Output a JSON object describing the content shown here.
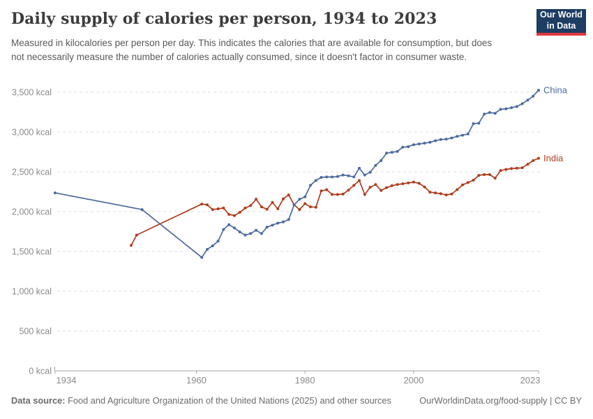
{
  "header": {
    "title": "Daily supply of calories per person, 1934 to 2023",
    "subtitle": "Measured in kilocalories per person per day. This indicates the calories that are available for consumption, but does not necessarily measure the number of calories actually consumed, since it doesn't factor in consumer waste.",
    "logo_line1": "Our World",
    "logo_line2": "in Data"
  },
  "footer": {
    "source_label": "Data source:",
    "source_text": " Food and Agriculture Organization of the United Nations (2025) and other sources",
    "right_text": "OurWorldinData.org/food-supply | CC BY"
  },
  "colors": {
    "china": "#4C6A9F",
    "india": "#AF3C1C",
    "gridline": "#DCDCDC",
    "axis": "#A3A3A3",
    "tick_text": "#8A8A8A",
    "logo_bg": "#1D3D63",
    "logo_stripe": "#E0373C"
  },
  "chart_data": {
    "type": "line",
    "title": "Daily supply of calories per person, 1934 to 2023",
    "xlabel": "",
    "ylabel": "",
    "unit": "kcal",
    "grid": "dashed-horizontal",
    "legend_position": "line-end-labels",
    "x_axis": {
      "range": [
        1934,
        2023
      ],
      "ticks": [
        1934,
        1960,
        1980,
        2000,
        2023
      ]
    },
    "y_axis": {
      "range": [
        0,
        3500
      ],
      "ticks": [
        0,
        500,
        1000,
        1500,
        2000,
        2500,
        3000,
        3500
      ],
      "tick_suffix": " kcal"
    },
    "series": [
      {
        "name": "China",
        "color": "#4C6A9F",
        "points": [
          [
            1934,
            2235
          ],
          [
            1950,
            2025
          ],
          [
            1961,
            1425
          ],
          [
            1962,
            1525
          ],
          [
            1963,
            1570
          ],
          [
            1964,
            1630
          ],
          [
            1965,
            1775
          ],
          [
            1966,
            1835
          ],
          [
            1967,
            1795
          ],
          [
            1968,
            1745
          ],
          [
            1969,
            1705
          ],
          [
            1970,
            1725
          ],
          [
            1971,
            1765
          ],
          [
            1972,
            1725
          ],
          [
            1973,
            1805
          ],
          [
            1974,
            1830
          ],
          [
            1975,
            1855
          ],
          [
            1976,
            1870
          ],
          [
            1977,
            1900
          ],
          [
            1978,
            2085
          ],
          [
            1979,
            2155
          ],
          [
            1980,
            2185
          ],
          [
            1981,
            2330
          ],
          [
            1982,
            2390
          ],
          [
            1983,
            2430
          ],
          [
            1984,
            2435
          ],
          [
            1985,
            2435
          ],
          [
            1986,
            2440
          ],
          [
            1987,
            2460
          ],
          [
            1988,
            2450
          ],
          [
            1989,
            2435
          ],
          [
            1990,
            2545
          ],
          [
            1991,
            2460
          ],
          [
            1992,
            2495
          ],
          [
            1993,
            2580
          ],
          [
            1994,
            2640
          ],
          [
            1995,
            2735
          ],
          [
            1996,
            2745
          ],
          [
            1997,
            2755
          ],
          [
            1998,
            2810
          ],
          [
            1999,
            2815
          ],
          [
            2000,
            2840
          ],
          [
            2001,
            2850
          ],
          [
            2002,
            2860
          ],
          [
            2003,
            2870
          ],
          [
            2004,
            2890
          ],
          [
            2005,
            2905
          ],
          [
            2006,
            2910
          ],
          [
            2007,
            2925
          ],
          [
            2008,
            2945
          ],
          [
            2009,
            2960
          ],
          [
            2010,
            2975
          ],
          [
            2011,
            3105
          ],
          [
            2012,
            3110
          ],
          [
            2013,
            3225
          ],
          [
            2014,
            3245
          ],
          [
            2015,
            3235
          ],
          [
            2016,
            3285
          ],
          [
            2017,
            3290
          ],
          [
            2018,
            3305
          ],
          [
            2019,
            3320
          ],
          [
            2020,
            3355
          ],
          [
            2021,
            3400
          ],
          [
            2022,
            3450
          ],
          [
            2023,
            3525
          ]
        ]
      },
      {
        "name": "India",
        "color": "#AF3C1C",
        "points": [
          [
            1948,
            1575
          ],
          [
            1949,
            1705
          ],
          [
            1961,
            2095
          ],
          [
            1962,
            2085
          ],
          [
            1963,
            2025
          ],
          [
            1964,
            2035
          ],
          [
            1965,
            2045
          ],
          [
            1966,
            1965
          ],
          [
            1967,
            1950
          ],
          [
            1968,
            1990
          ],
          [
            1969,
            2045
          ],
          [
            1970,
            2075
          ],
          [
            1971,
            2155
          ],
          [
            1972,
            2060
          ],
          [
            1973,
            2030
          ],
          [
            1974,
            2115
          ],
          [
            1975,
            2035
          ],
          [
            1976,
            2160
          ],
          [
            1977,
            2210
          ],
          [
            1978,
            2085
          ],
          [
            1979,
            2025
          ],
          [
            1980,
            2100
          ],
          [
            1981,
            2060
          ],
          [
            1982,
            2055
          ],
          [
            1983,
            2260
          ],
          [
            1984,
            2275
          ],
          [
            1985,
            2215
          ],
          [
            1986,
            2215
          ],
          [
            1987,
            2220
          ],
          [
            1988,
            2270
          ],
          [
            1989,
            2330
          ],
          [
            1990,
            2390
          ],
          [
            1991,
            2215
          ],
          [
            1992,
            2305
          ],
          [
            1993,
            2340
          ],
          [
            1994,
            2265
          ],
          [
            1995,
            2300
          ],
          [
            1996,
            2325
          ],
          [
            1997,
            2340
          ],
          [
            1998,
            2350
          ],
          [
            1999,
            2360
          ],
          [
            2000,
            2370
          ],
          [
            2001,
            2355
          ],
          [
            2002,
            2310
          ],
          [
            2003,
            2245
          ],
          [
            2004,
            2235
          ],
          [
            2005,
            2225
          ],
          [
            2006,
            2210
          ],
          [
            2007,
            2220
          ],
          [
            2008,
            2275
          ],
          [
            2009,
            2335
          ],
          [
            2010,
            2365
          ],
          [
            2011,
            2395
          ],
          [
            2012,
            2455
          ],
          [
            2013,
            2465
          ],
          [
            2014,
            2465
          ],
          [
            2015,
            2420
          ],
          [
            2016,
            2515
          ],
          [
            2017,
            2530
          ],
          [
            2018,
            2540
          ],
          [
            2019,
            2545
          ],
          [
            2020,
            2550
          ],
          [
            2021,
            2595
          ],
          [
            2022,
            2640
          ],
          [
            2023,
            2670
          ]
        ]
      }
    ]
  }
}
